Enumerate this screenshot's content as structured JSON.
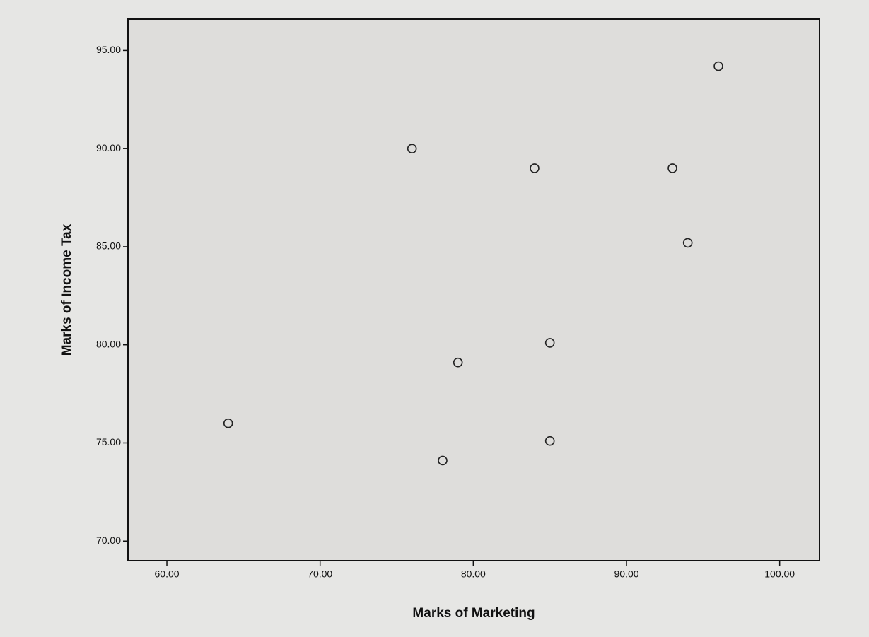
{
  "chart_data": {
    "type": "scatter",
    "x_label": "Marks of Marketing",
    "y_label": "Marks of Income Tax",
    "x": [
      64,
      76,
      84,
      93,
      96,
      94,
      85,
      79,
      78,
      85
    ],
    "values": [
      76,
      90,
      89,
      89,
      94.2,
      85.2,
      80.1,
      79.1,
      74.1,
      75.1
    ],
    "color": "#222222",
    "xlim": [
      57.46,
      102.6
    ],
    "ylim": [
      69.0,
      96.6
    ],
    "xticks": [
      {
        "value": 60,
        "label": "60.00"
      },
      {
        "value": 70,
        "label": "70.00"
      },
      {
        "value": 80,
        "label": "80.00"
      },
      {
        "value": 90,
        "label": "90.00"
      },
      {
        "value": 100,
        "label": "100.00"
      }
    ],
    "yticks": [
      {
        "value": 70,
        "label": "70.00"
      },
      {
        "value": 75,
        "label": "75.00"
      },
      {
        "value": 80,
        "label": "80.00"
      },
      {
        "value": 85,
        "label": "85.00"
      },
      {
        "value": 90,
        "label": "90.00"
      },
      {
        "value": 95,
        "label": "95.00"
      }
    ],
    "grid": false
  }
}
